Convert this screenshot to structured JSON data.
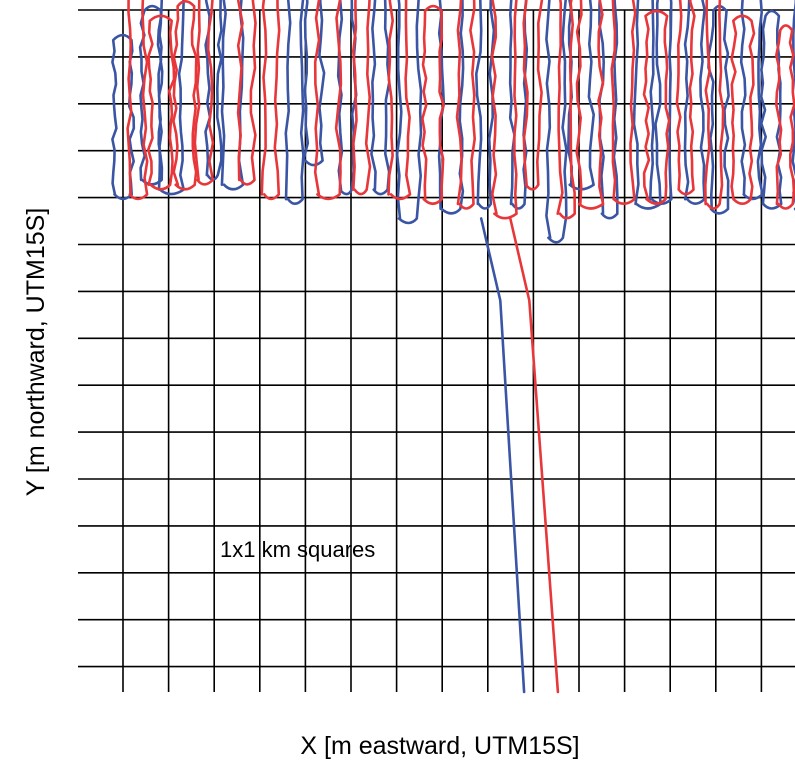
{
  "chart_data": {
    "type": "line",
    "title": "",
    "xlabel": "X [m eastward, UTM15S]",
    "ylabel": "Y [m northward, UTM15S]",
    "x_units": "km",
    "y_units": "km",
    "xlim": [
      0,
      15
    ],
    "ylim": [
      -14,
      0
    ],
    "grid": true,
    "grid_spacing_km": 1,
    "tick_labels": "none",
    "legend": "none",
    "annotations": [
      {
        "text": "1x1 km squares",
        "x": 2.3,
        "y": -11.4
      }
    ],
    "series": [
      {
        "color": "#3a55a4",
        "lanes": [
          [
            0.0,
            -8.8,
            -5.6
          ],
          [
            0.6,
            -8.5,
            -5.0
          ],
          [
            1.0,
            -8.7,
            -4.5
          ],
          [
            1.9,
            -8.4,
            -4.2
          ],
          [
            2.3,
            -8.6,
            -1.5
          ],
          [
            3.6,
            -8.9,
            -2.5
          ],
          [
            4.0,
            -8.1,
            -3.0
          ],
          [
            4.7,
            -8.7,
            -3.2
          ],
          [
            5.4,
            -8.7,
            -3.5
          ],
          [
            6.0,
            -9.3,
            -3.1
          ],
          [
            6.9,
            -9.1,
            -4.0
          ],
          [
            7.6,
            -9.0,
            -2.7
          ],
          [
            8.3,
            -9.0,
            -4.0
          ],
          [
            9.1,
            -9.7,
            -3.3
          ],
          [
            9.6,
            -8.6,
            -3.5
          ],
          [
            10.2,
            -9.2,
            -3.7
          ],
          [
            11.0,
            -9.0,
            -3.2
          ],
          [
            11.3,
            -8.9,
            -3.7
          ],
          [
            12.0,
            -8.9,
            -3.9
          ],
          [
            12.5,
            -9.1,
            -5.0
          ],
          [
            13.2,
            -8.8,
            -4.0
          ],
          [
            13.6,
            -9.0,
            -5.1
          ],
          [
            14.3,
            -9.1,
            -4.5
          ],
          [
            14.7,
            -8.7,
            -3.0
          ]
        ],
        "exit_track": [
          [
            7.6,
            -9.3
          ],
          [
            8.0,
            -11.0
          ],
          [
            8.5,
            -14.0
          ]
        ]
      },
      {
        "color": "#e8373a",
        "lanes": [
          [
            0.3,
            -8.8,
            -4.0
          ],
          [
            0.8,
            -8.6,
            -5.2
          ],
          [
            1.3,
            -8.6,
            -4.9
          ],
          [
            1.7,
            -8.5,
            -3.1
          ],
          [
            2.6,
            -8.5,
            -2.0
          ],
          [
            3.1,
            -8.8,
            -2.0
          ],
          [
            4.3,
            -8.8,
            -2.4
          ],
          [
            5.0,
            -8.7,
            -2.0
          ],
          [
            5.8,
            -8.8,
            -3.2
          ],
          [
            6.5,
            -8.9,
            -5.0
          ],
          [
            7.2,
            -9.0,
            -2.7
          ],
          [
            8.0,
            -9.2,
            -3.5
          ],
          [
            8.6,
            -8.6,
            -1.9
          ],
          [
            9.3,
            -9.2,
            -3.1
          ],
          [
            9.8,
            -9.0,
            -4.0
          ],
          [
            10.5,
            -8.9,
            -3.5
          ],
          [
            11.2,
            -8.9,
            -5.1
          ],
          [
            11.8,
            -8.7,
            -4.5
          ],
          [
            12.4,
            -9.0,
            -3.5
          ],
          [
            13.0,
            -8.9,
            -5.2
          ],
          [
            13.9,
            -9.0,
            -5.4
          ],
          [
            14.5,
            -8.8,
            -5.0
          ]
        ],
        "exit_track": [
          [
            8.0,
            -9.3
          ],
          [
            8.4,
            -11.0
          ],
          [
            9.0,
            -14.0
          ]
        ]
      }
    ]
  }
}
